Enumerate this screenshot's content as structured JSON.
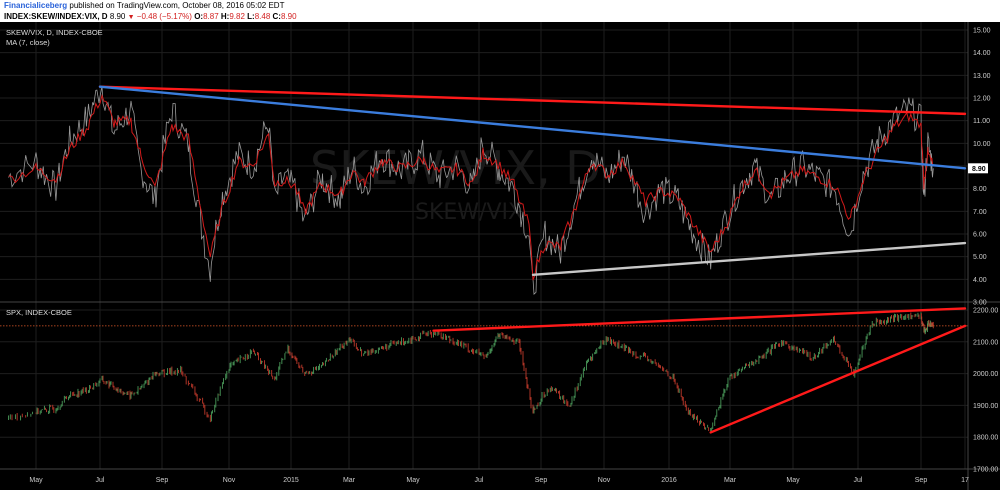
{
  "header": {
    "publisher": "Financialiceberg",
    "published_text": "published on TradingView.com, October 08, 2016 05:02 EDT",
    "symbol": "INDEX:SKEW/INDEX:VIX, D",
    "last": "8.90",
    "change": "−0.48 (−5.17%)",
    "o_label": "O:",
    "o_value": "8.87",
    "h_label": "H:",
    "h_value": "9.82",
    "l_label": "L:",
    "l_value": "8.48",
    "c_label": "C:",
    "c_value": "8.90"
  },
  "panes": {
    "top": {
      "legend_line1": "SKEW/VIX, D, INDEX-CBOE",
      "legend_line2": "MA (7, close)",
      "watermark": "SKEW/VIX, D",
      "watermark_sub": "SKEW/VIX",
      "last_badge": "8.90"
    },
    "bottom": {
      "legend_line1": "SPX, INDEX-CBOE"
    }
  },
  "colors": {
    "background": "#000000",
    "grid": "#1e1e1e",
    "price_line": "#9a9a9a",
    "ma_line": "#d11a1a",
    "trend_red": "#ff1a1a",
    "trend_blue": "#3b7ddd",
    "trend_gray": "#c8c8c8",
    "candle_up": "#4a9a5a",
    "candle_down": "#c0392b",
    "dotted_level": "#e05a2a",
    "badge": "#ffffff"
  },
  "chart_data": [
    {
      "type": "line",
      "title": "SKEW/VIX, D, INDEX-CBOE",
      "x_ticks": [
        "May",
        "Jul",
        "Sep",
        "Nov",
        "2015",
        "Mar",
        "May",
        "Jul",
        "Sep",
        "Nov",
        "2016",
        "Mar",
        "May",
        "Jul",
        "Sep",
        "17"
      ],
      "ylim": [
        3.0,
        15.0
      ],
      "y_ticks": [
        3.0,
        4.0,
        5.0,
        6.0,
        7.0,
        8.0,
        9.0,
        10.0,
        11.0,
        12.0,
        13.0,
        14.0,
        15.0
      ],
      "x_end": "17",
      "series": [
        {
          "name": "SKEW/VIX",
          "x": [
            "2014-04-15",
            "2014-05-01",
            "2014-05-20",
            "2014-06-01",
            "2014-06-20",
            "2014-07-03",
            "2014-07-15",
            "2014-08-01",
            "2014-08-10",
            "2014-08-25",
            "2014-09-10",
            "2014-09-25",
            "2014-10-05",
            "2014-10-15",
            "2014-10-25",
            "2014-11-10",
            "2014-11-25",
            "2014-12-10",
            "2014-12-16",
            "2014-12-25",
            "2015-01-05",
            "2015-01-15",
            "2015-02-01",
            "2015-02-20",
            "2015-03-05",
            "2015-03-15",
            "2015-04-01",
            "2015-04-20",
            "2015-05-10",
            "2015-05-25",
            "2015-06-10",
            "2015-06-25",
            "2015-07-05",
            "2015-07-20",
            "2015-08-05",
            "2015-08-20",
            "2015-08-24",
            "2015-09-05",
            "2015-09-20",
            "2015-10-05",
            "2015-10-20",
            "2015-11-05",
            "2015-11-20",
            "2015-12-10",
            "2015-12-25",
            "2016-01-10",
            "2016-01-20",
            "2016-02-11",
            "2016-02-25",
            "2016-03-10",
            "2016-03-25",
            "2016-04-10",
            "2016-04-25",
            "2016-05-10",
            "2016-05-25",
            "2016-06-10",
            "2016-06-24",
            "2016-07-05",
            "2016-07-20",
            "2016-08-05",
            "2016-08-20",
            "2016-09-01",
            "2016-09-09",
            "2016-09-20",
            "2016-10-05"
          ],
          "values": [
            8.5,
            9.2,
            8.0,
            10.0,
            11.2,
            12.6,
            10.5,
            11.5,
            9.0,
            7.5,
            11.5,
            10.0,
            7.0,
            4.5,
            7.5,
            9.5,
            9.0,
            11.0,
            7.5,
            8.5,
            8.0,
            6.5,
            8.5,
            7.5,
            9.0,
            8.0,
            9.5,
            8.8,
            9.5,
            8.5,
            9.0,
            8.0,
            10.0,
            9.0,
            8.0,
            6.0,
            3.5,
            6.0,
            5.2,
            7.5,
            9.5,
            8.5,
            9.5,
            7.0,
            8.0,
            7.5,
            6.5,
            4.8,
            6.5,
            8.0,
            9.0,
            7.5,
            8.5,
            9.0,
            8.5,
            8.0,
            6.0,
            8.5,
            10.0,
            11.0,
            11.5,
            11.0,
            7.5,
            10.0,
            8.9
          ]
        },
        {
          "name": "MA (7, close)",
          "x": [
            "2014-04-15",
            "2014-05-01",
            "2014-05-20",
            "2014-06-01",
            "2014-06-20",
            "2014-07-03",
            "2014-07-15",
            "2014-08-01",
            "2014-08-10",
            "2014-08-25",
            "2014-09-10",
            "2014-09-25",
            "2014-10-05",
            "2014-10-15",
            "2014-10-25",
            "2014-11-10",
            "2014-11-25",
            "2014-12-10",
            "2014-12-16",
            "2014-12-25",
            "2015-01-05",
            "2015-01-15",
            "2015-02-01",
            "2015-02-20",
            "2015-03-05",
            "2015-03-15",
            "2015-04-01",
            "2015-04-20",
            "2015-05-10",
            "2015-05-25",
            "2015-06-10",
            "2015-06-25",
            "2015-07-05",
            "2015-07-20",
            "2015-08-05",
            "2015-08-20",
            "2015-08-24",
            "2015-09-05",
            "2015-09-20",
            "2015-10-05",
            "2015-10-20",
            "2015-11-05",
            "2015-11-20",
            "2015-12-10",
            "2015-12-25",
            "2016-01-10",
            "2016-01-20",
            "2016-02-11",
            "2016-02-25",
            "2016-03-10",
            "2016-03-25",
            "2016-04-10",
            "2016-04-25",
            "2016-05-10",
            "2016-05-25",
            "2016-06-10",
            "2016-06-24",
            "2016-07-05",
            "2016-07-20",
            "2016-08-05",
            "2016-08-20",
            "2016-09-01",
            "2016-09-09",
            "2016-09-20",
            "2016-10-05"
          ],
          "values": [
            8.4,
            8.9,
            8.4,
            9.6,
            10.8,
            12.1,
            10.9,
            11.0,
            9.6,
            8.0,
            10.8,
            10.2,
            7.5,
            5.0,
            7.0,
            9.2,
            9.0,
            10.4,
            8.2,
            8.4,
            8.1,
            6.9,
            8.2,
            7.7,
            8.8,
            8.2,
            9.2,
            8.9,
            9.3,
            8.7,
            8.9,
            8.2,
            9.6,
            9.1,
            8.2,
            6.4,
            4.2,
            5.6,
            5.4,
            7.2,
            9.2,
            8.6,
            9.2,
            7.4,
            7.9,
            7.6,
            6.8,
            5.2,
            6.3,
            7.8,
            8.8,
            7.8,
            8.4,
            8.8,
            8.5,
            8.1,
            6.6,
            8.2,
            9.6,
            10.7,
            11.2,
            10.8,
            8.2,
            9.6,
            9.0
          ]
        }
      ],
      "trendlines": [
        {
          "name": "red",
          "from": [
            "2014-07-01",
            12.5
          ],
          "to": [
            "2017-01-01",
            11.3
          ]
        },
        {
          "name": "blue",
          "from": [
            "2014-07-01",
            12.5
          ],
          "to": [
            "2017-01-01",
            8.9
          ]
        },
        {
          "name": "gray",
          "from": [
            "2015-08-24",
            4.2
          ],
          "to": [
            "2017-01-01",
            5.6
          ]
        }
      ]
    },
    {
      "type": "bar",
      "title": "SPX, INDEX-CBOE",
      "x_ticks": [
        "May",
        "Jul",
        "Sep",
        "Nov",
        "2015",
        "Mar",
        "May",
        "Jul",
        "Sep",
        "Nov",
        "2016",
        "Mar",
        "May",
        "Jul",
        "Sep",
        "17"
      ],
      "ylim": [
        1700,
        2200
      ],
      "y_ticks": [
        1700,
        1800,
        1900,
        2000,
        2100,
        2200
      ],
      "dotted_level": 2150,
      "series": [
        {
          "name": "SPX",
          "x": [
            "2014-04-15",
            "2014-05-01",
            "2014-05-20",
            "2014-06-01",
            "2014-06-20",
            "2014-07-03",
            "2014-07-31",
            "2014-08-10",
            "2014-08-25",
            "2014-09-18",
            "2014-10-01",
            "2014-10-15",
            "2014-11-01",
            "2014-11-25",
            "2014-12-16",
            "2014-12-29",
            "2015-01-15",
            "2015-02-01",
            "2015-03-01",
            "2015-03-15",
            "2015-04-01",
            "2015-05-20",
            "2015-06-10",
            "2015-07-08",
            "2015-07-20",
            "2015-08-10",
            "2015-08-24",
            "2015-09-10",
            "2015-09-29",
            "2015-10-15",
            "2015-11-03",
            "2015-11-20",
            "2015-12-15",
            "2016-01-05",
            "2016-01-20",
            "2016-02-11",
            "2016-03-01",
            "2016-04-01",
            "2016-04-20",
            "2016-05-20",
            "2016-06-08",
            "2016-06-27",
            "2016-07-15",
            "2016-08-15",
            "2016-09-01",
            "2016-09-12",
            "2016-09-25",
            "2016-10-05"
          ],
          "values": [
            1860,
            1880,
            1890,
            1930,
            1950,
            1980,
            1930,
            1950,
            2000,
            2010,
            1940,
            1860,
            2020,
            2070,
            1980,
            2080,
            2000,
            2020,
            2110,
            2060,
            2080,
            2130,
            2100,
            2050,
            2120,
            2100,
            1880,
            1960,
            1900,
            2030,
            2110,
            2080,
            2040,
            1990,
            1880,
            1820,
            1990,
            2050,
            2100,
            2050,
            2110,
            2000,
            2160,
            2180,
            2180,
            2130,
            2160,
            2150
          ]
        }
      ],
      "trendlines": [
        {
          "name": "red_top",
          "from": [
            "2015-05-20",
            2135
          ],
          "to": [
            "2017-01-01",
            2205
          ]
        },
        {
          "name": "red_bottom",
          "from": [
            "2016-02-11",
            1815
          ],
          "to": [
            "2017-01-01",
            2150
          ]
        }
      ]
    }
  ]
}
